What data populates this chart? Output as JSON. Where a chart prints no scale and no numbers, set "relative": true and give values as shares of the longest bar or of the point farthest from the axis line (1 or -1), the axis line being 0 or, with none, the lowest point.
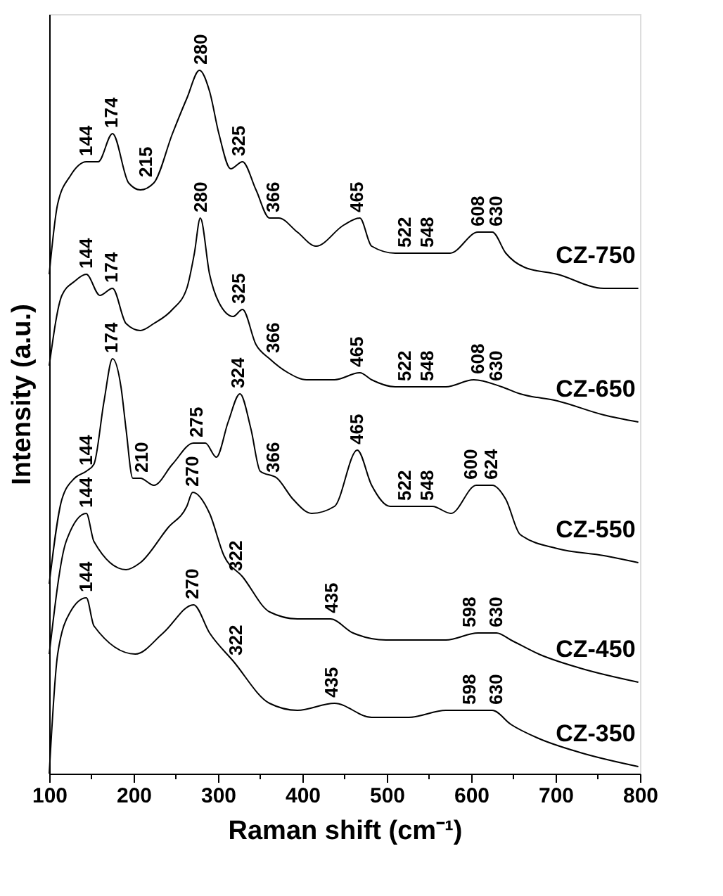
{
  "chart_data": {
    "type": "line",
    "relative": true,
    "xlabel": "Raman shift (cm⁻¹)",
    "ylabel": "Intensity (a.u.)",
    "xlim": [
      100,
      800
    ],
    "xticks": [
      100,
      {
        "value": 150,
        "label": null
      },
      200,
      {
        "value": 250,
        "label": null
      },
      300,
      {
        "value": 350,
        "label": null
      },
      400,
      {
        "value": 450,
        "label": null
      },
      500,
      {
        "value": 550,
        "label": null
      },
      600,
      {
        "value": 650,
        "label": null
      },
      700,
      {
        "value": 750,
        "label": null
      },
      800
    ],
    "grid": false,
    "marker": "none",
    "line_style": "solid",
    "tick_labels": "x",
    "series": [
      {
        "name": "CZ-750",
        "color": "#000000",
        "x": [
          100,
          110,
          125,
          144,
          158,
          175,
          194,
          208,
          224,
          246,
          263,
          278,
          290,
          301,
          315,
          329,
          345,
          361,
          372,
          394,
          416,
          449,
          468,
          482,
          510,
          537,
          559,
          575,
          608,
          625,
          641,
          663,
          702,
          757,
          798
        ],
        "values": [
          0.71,
          0.81,
          0.85,
          0.87,
          0.87,
          0.91,
          0.84,
          0.83,
          0.84,
          0.91,
          0.96,
          1.0,
          0.97,
          0.91,
          0.86,
          0.87,
          0.83,
          0.79,
          0.79,
          0.77,
          0.75,
          0.78,
          0.79,
          0.75,
          0.74,
          0.74,
          0.74,
          0.74,
          0.77,
          0.77,
          0.74,
          0.72,
          0.71,
          0.69,
          0.69
        ]
      },
      {
        "name": "CZ-650",
        "color": "#000000",
        "x": [
          100,
          115,
          130,
          144,
          160,
          175,
          191,
          208,
          224,
          246,
          263,
          272,
          279,
          290,
          301,
          318,
          329,
          345,
          361,
          383,
          405,
          438,
          468,
          482,
          510,
          537,
          570,
          603,
          636,
          658,
          702,
          757,
          798
        ],
        "values": [
          0.58,
          0.68,
          0.7,
          0.71,
          0.68,
          0.69,
          0.64,
          0.63,
          0.64,
          0.66,
          0.69,
          0.74,
          0.79,
          0.71,
          0.67,
          0.65,
          0.66,
          0.61,
          0.59,
          0.57,
          0.56,
          0.56,
          0.57,
          0.56,
          0.55,
          0.55,
          0.55,
          0.56,
          0.55,
          0.54,
          0.53,
          0.51,
          0.5
        ]
      },
      {
        "name": "CZ-550",
        "color": "#000000",
        "x": [
          100,
          115,
          130,
          144,
          153,
          165,
          175,
          185,
          191,
          199,
          208,
          224,
          246,
          271,
          285,
          298,
          312,
          326,
          339,
          350,
          370,
          389,
          411,
          438,
          465,
          482,
          504,
          537,
          554,
          576,
          606,
          625,
          641,
          658,
          702,
          757,
          798
        ],
        "values": [
          0.27,
          0.39,
          0.42,
          0.43,
          0.44,
          0.53,
          0.59,
          0.55,
          0.49,
          0.42,
          0.42,
          0.41,
          0.44,
          0.47,
          0.47,
          0.45,
          0.5,
          0.54,
          0.49,
          0.43,
          0.42,
          0.39,
          0.37,
          0.38,
          0.46,
          0.41,
          0.38,
          0.38,
          0.38,
          0.37,
          0.41,
          0.41,
          0.39,
          0.34,
          0.32,
          0.31,
          0.3
        ]
      },
      {
        "name": "CZ-450",
        "color": "#000000",
        "x": [
          100,
          120,
          144,
          153,
          191,
          208,
          241,
          263,
          270,
          290,
          307,
          329,
          361,
          394,
          433,
          460,
          499,
          537,
          570,
          608,
          630,
          647,
          680,
          729,
          798
        ],
        "values": [
          0.17,
          0.33,
          0.37,
          0.33,
          0.29,
          0.3,
          0.35,
          0.38,
          0.4,
          0.37,
          0.31,
          0.28,
          0.23,
          0.22,
          0.22,
          0.2,
          0.19,
          0.19,
          0.19,
          0.2,
          0.2,
          0.19,
          0.17,
          0.15,
          0.13
        ]
      },
      {
        "name": "CZ-350",
        "color": "#000000",
        "x": [
          100,
          110,
          125,
          144,
          153,
          202,
          235,
          271,
          290,
          318,
          361,
          394,
          438,
          482,
          526,
          570,
          625,
          647,
          680,
          729,
          798
        ],
        "values": [
          0.0,
          0.17,
          0.23,
          0.25,
          0.21,
          0.17,
          0.2,
          0.24,
          0.2,
          0.16,
          0.1,
          0.09,
          0.1,
          0.08,
          0.08,
          0.09,
          0.09,
          0.07,
          0.05,
          0.03,
          0.01
        ]
      }
    ],
    "annotations": [
      {
        "text": "144",
        "x": 144,
        "y": 0.87
      },
      {
        "text": "174",
        "x": 174,
        "y": 0.91
      },
      {
        "text": "215",
        "x": 215,
        "y": 0.84
      },
      {
        "text": "280",
        "x": 280,
        "y": 1.0
      },
      {
        "text": "325",
        "x": 325,
        "y": 0.87
      },
      {
        "text": "366",
        "x": 366,
        "y": 0.79
      },
      {
        "text": "465",
        "x": 465,
        "y": 0.79
      },
      {
        "text": "522",
        "x": 522,
        "y": 0.74
      },
      {
        "text": "548",
        "x": 548,
        "y": 0.74
      },
      {
        "text": "608",
        "x": 608,
        "y": 0.77
      },
      {
        "text": "630",
        "x": 630,
        "y": 0.77
      },
      {
        "text": "144",
        "x": 144,
        "y": 0.71
      },
      {
        "text": "174",
        "x": 174,
        "y": 0.69
      },
      {
        "text": "280",
        "x": 280,
        "y": 0.79
      },
      {
        "text": "325",
        "x": 325,
        "y": 0.66
      },
      {
        "text": "366",
        "x": 366,
        "y": 0.59
      },
      {
        "text": "465",
        "x": 465,
        "y": 0.57
      },
      {
        "text": "522",
        "x": 522,
        "y": 0.55
      },
      {
        "text": "548",
        "x": 548,
        "y": 0.55
      },
      {
        "text": "608",
        "x": 608,
        "y": 0.56
      },
      {
        "text": "630",
        "x": 630,
        "y": 0.55
      },
      {
        "text": "144",
        "x": 144,
        "y": 0.43
      },
      {
        "text": "174",
        "x": 174,
        "y": 0.59
      },
      {
        "text": "210",
        "x": 210,
        "y": 0.42
      },
      {
        "text": "275",
        "x": 275,
        "y": 0.47
      },
      {
        "text": "324",
        "x": 324,
        "y": 0.54
      },
      {
        "text": "366",
        "x": 366,
        "y": 0.42
      },
      {
        "text": "465",
        "x": 465,
        "y": 0.46
      },
      {
        "text": "522",
        "x": 522,
        "y": 0.38
      },
      {
        "text": "548",
        "x": 548,
        "y": 0.38
      },
      {
        "text": "600",
        "x": 600,
        "y": 0.41
      },
      {
        "text": "624",
        "x": 624,
        "y": 0.41
      },
      {
        "text": "144",
        "x": 144,
        "y": 0.37
      },
      {
        "text": "270",
        "x": 270,
        "y": 0.4
      },
      {
        "text": "322",
        "x": 322,
        "y": 0.28
      },
      {
        "text": "435",
        "x": 435,
        "y": 0.22
      },
      {
        "text": "598",
        "x": 598,
        "y": 0.2
      },
      {
        "text": "630",
        "x": 630,
        "y": 0.2
      },
      {
        "text": "144",
        "x": 144,
        "y": 0.25
      },
      {
        "text": "270",
        "x": 270,
        "y": 0.24
      },
      {
        "text": "322",
        "x": 322,
        "y": 0.16
      },
      {
        "text": "435",
        "x": 435,
        "y": 0.1
      },
      {
        "text": "598",
        "x": 598,
        "y": 0.09
      },
      {
        "text": "630",
        "x": 630,
        "y": 0.09
      }
    ]
  }
}
